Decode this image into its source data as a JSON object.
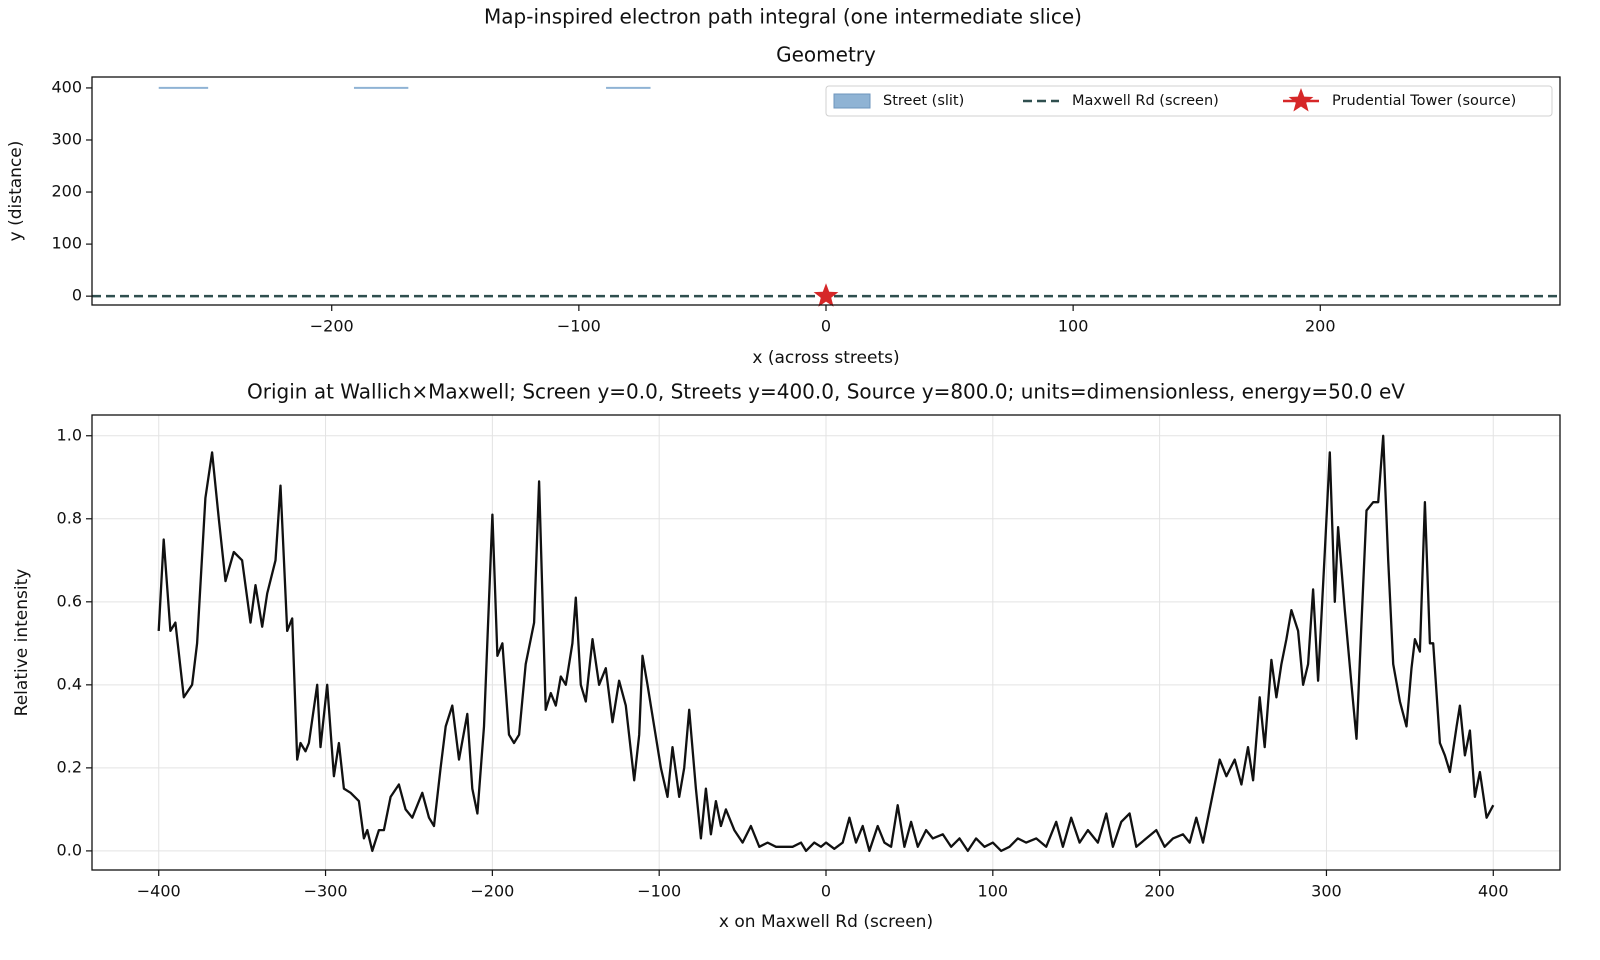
{
  "figure_title": "Map-inspired electron path integral (one intermediate slice)",
  "chart_data": [
    {
      "type": "geometry",
      "title": "Geometry",
      "x_label": "x (across streets)",
      "y_label": "y (distance)",
      "xlim": [
        -297,
        297
      ],
      "ylim": [
        -17,
        421
      ],
      "xticks": [
        {
          "value": -200,
          "label": "−200"
        },
        {
          "value": -100,
          "label": "−100"
        },
        0,
        100,
        200
      ],
      "yticks": [
        0,
        100,
        200,
        300,
        400
      ],
      "grid": false,
      "legend": "upper right",
      "series": [
        {
          "name": "Street (slit)",
          "color": "#8fb3d4",
          "kind": "slit",
          "x": [
            [
              -270,
              -250
            ],
            [
              -191,
              -169
            ],
            [
              -89,
              -71
            ]
          ],
          "y": 400
        },
        {
          "name": "Maxwell Rd (screen)",
          "color": "#2f4f4f",
          "kind": "screen",
          "y": 0
        },
        {
          "name": "Prudential Tower (source)",
          "color": "#d62728",
          "kind": "star",
          "x": 0,
          "y": 0
        }
      ]
    },
    {
      "type": "line",
      "title": "Origin at Wallich×Maxwell; Screen y=0.0, Streets y=400.0, Source y=800.0; units=dimensionless, energy=50.0 eV",
      "x_label": "x on Maxwell Rd (screen)",
      "y_label": "Relative intensity",
      "xlim": [
        -440,
        440
      ],
      "ylim": [
        -0.046,
        1.05
      ],
      "xticks": [
        {
          "value": -400,
          "label": "−400"
        },
        {
          "value": -300,
          "label": "−300"
        },
        {
          "value": -200,
          "label": "−200"
        },
        {
          "value": -100,
          "label": "−100"
        },
        0,
        100,
        200,
        300,
        400
      ],
      "yticks": [
        {
          "value": 0,
          "label": "0.0"
        },
        {
          "value": 0.2,
          "label": "0.2"
        },
        {
          "value": 0.4,
          "label": "0.4"
        },
        {
          "value": 0.6,
          "label": "0.6"
        },
        {
          "value": 0.8,
          "label": "0.8"
        },
        {
          "value": 1,
          "label": "1.0"
        }
      ],
      "grid": true,
      "series": [
        {
          "color": "#111111",
          "x": [
            -400,
            -397,
            -393,
            -390,
            -385,
            -380,
            -377,
            -372,
            -368,
            -364,
            -360,
            -355,
            -350,
            -345,
            -342,
            -338,
            -335,
            -330,
            -327,
            -323,
            -320,
            -317,
            -315,
            -312,
            -310,
            -305,
            -303,
            -299,
            -295,
            -292,
            -289,
            -285,
            -280,
            -277,
            -275,
            -272,
            -268,
            -265,
            -261,
            -256,
            -252,
            -248,
            -242,
            -238,
            -235,
            -231,
            -228,
            -224,
            -220,
            -215,
            -212,
            -209,
            -205,
            -200,
            -197,
            -194,
            -190,
            -187,
            -184,
            -180,
            -175,
            -172,
            -168,
            -165,
            -162,
            -159,
            -156,
            -152,
            -150,
            -147,
            -144,
            -140,
            -136,
            -132,
            -128,
            -124,
            -120,
            -115,
            -112,
            -110,
            -107,
            -103,
            -99,
            -95,
            -92,
            -88,
            -85,
            -82,
            -78,
            -75,
            -72,
            -69,
            -66,
            -63,
            -60,
            -55,
            -50,
            -45,
            -40,
            -35,
            -30,
            -25,
            -20,
            -15,
            -12,
            -7,
            -3,
            0,
            5,
            10,
            14,
            18,
            22,
            26,
            31,
            35,
            39,
            43,
            47,
            51,
            55,
            60,
            64,
            70,
            75,
            80,
            85,
            90,
            95,
            100,
            105,
            110,
            115,
            120,
            126,
            132,
            138,
            142,
            147,
            152,
            157,
            163,
            168,
            172,
            177,
            182,
            186,
            192,
            198,
            203,
            208,
            214,
            218,
            222,
            226,
            230,
            236,
            240,
            245,
            249,
            253,
            256,
            260,
            263,
            267,
            270,
            273,
            276,
            279,
            283,
            286,
            289,
            292,
            295,
            299,
            302,
            305,
            307,
            311,
            315,
            318,
            321,
            324,
            328,
            331,
            334,
            337,
            340,
            344,
            348,
            351,
            353,
            356,
            359,
            362,
            364,
            368,
            371,
            374,
            378,
            380,
            383,
            386,
            389,
            392,
            396,
            400
          ],
          "values": [
            0.53,
            0.75,
            0.53,
            0.55,
            0.37,
            0.4,
            0.5,
            0.85,
            0.96,
            0.8,
            0.65,
            0.72,
            0.7,
            0.55,
            0.64,
            0.54,
            0.62,
            0.7,
            0.88,
            0.53,
            0.56,
            0.22,
            0.26,
            0.24,
            0.26,
            0.4,
            0.25,
            0.4,
            0.18,
            0.26,
            0.15,
            0.14,
            0.12,
            0.03,
            0.05,
            0.0,
            0.05,
            0.05,
            0.13,
            0.16,
            0.1,
            0.08,
            0.14,
            0.08,
            0.06,
            0.2,
            0.3,
            0.35,
            0.22,
            0.33,
            0.15,
            0.09,
            0.3,
            0.81,
            0.47,
            0.5,
            0.28,
            0.26,
            0.28,
            0.45,
            0.55,
            0.89,
            0.34,
            0.38,
            0.35,
            0.42,
            0.4,
            0.5,
            0.61,
            0.4,
            0.36,
            0.51,
            0.4,
            0.44,
            0.31,
            0.41,
            0.35,
            0.17,
            0.28,
            0.47,
            0.4,
            0.3,
            0.2,
            0.13,
            0.25,
            0.13,
            0.2,
            0.34,
            0.15,
            0.03,
            0.15,
            0.04,
            0.12,
            0.06,
            0.1,
            0.05,
            0.02,
            0.06,
            0.01,
            0.02,
            0.01,
            0.01,
            0.01,
            0.02,
            0.0,
            0.02,
            0.01,
            0.02,
            0.005,
            0.02,
            0.08,
            0.02,
            0.06,
            0.0,
            0.06,
            0.02,
            0.01,
            0.11,
            0.01,
            0.07,
            0.01,
            0.05,
            0.03,
            0.04,
            0.01,
            0.03,
            0.0,
            0.03,
            0.01,
            0.02,
            0.0,
            0.01,
            0.03,
            0.02,
            0.03,
            0.01,
            0.07,
            0.01,
            0.08,
            0.02,
            0.05,
            0.02,
            0.09,
            0.01,
            0.07,
            0.09,
            0.01,
            0.03,
            0.05,
            0.01,
            0.03,
            0.04,
            0.02,
            0.08,
            0.02,
            0.1,
            0.22,
            0.18,
            0.22,
            0.16,
            0.25,
            0.17,
            0.37,
            0.25,
            0.46,
            0.37,
            0.45,
            0.51,
            0.58,
            0.53,
            0.4,
            0.45,
            0.63,
            0.41,
            0.72,
            0.96,
            0.6,
            0.78,
            0.58,
            0.4,
            0.27,
            0.55,
            0.82,
            0.84,
            0.84,
            1.0,
            0.7,
            0.45,
            0.36,
            0.3,
            0.44,
            0.51,
            0.48,
            0.84,
            0.5,
            0.5,
            0.26,
            0.23,
            0.19,
            0.3,
            0.35,
            0.23,
            0.29,
            0.13,
            0.19,
            0.08,
            0.11
          ]
        }
      ]
    }
  ]
}
